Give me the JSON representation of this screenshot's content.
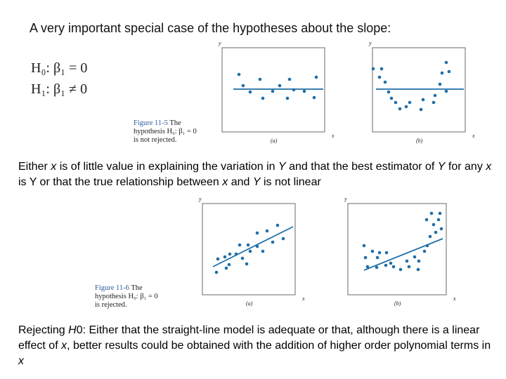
{
  "title": "A very important special case of the hypotheses about the slope:",
  "hypotheses": {
    "h0": "H₀: β₁ = 0",
    "h1": "H₁: β₁ ≠ 0"
  },
  "figure_11_5": {
    "caption_label": "Figure 11-5",
    "caption_lines": [
      "The",
      "hypothesis H₀: β₁ = 0",
      "is not rejected."
    ],
    "panels": [
      {
        "y_label": "y",
        "x_label": "x",
        "label": "(a)"
      },
      {
        "y_label": "y",
        "x_label": "x",
        "label": "(b)"
      }
    ]
  },
  "paragraph_1": [
    "Either ",
    "x",
    " is of little value in explaining the variation in ",
    "Y",
    " and that the best estimator of ",
    "Y",
    " for any ",
    "x",
    " is Y or that the true relationship between ",
    "x",
    " and ",
    "Y",
    " is not linear"
  ],
  "figure_11_6": {
    "caption_label": "Figure 11-6",
    "caption_lines": [
      "The",
      "hypothesis H₀: β₁ = 0",
      "is rejected."
    ],
    "panels": [
      {
        "y_label": "y",
        "x_label": "x",
        "label": "(a)"
      },
      {
        "y_label": "y",
        "x_label": "x",
        "label": "(b)"
      }
    ]
  },
  "paragraph_2": [
    "Rejecting ",
    "H",
    "0: Either that the straight-line model is adequate or that, although there is a linear effect of ",
    "x",
    ", better results could be obtained with the addition of higher order polynomial terms in ",
    "x"
  ]
}
